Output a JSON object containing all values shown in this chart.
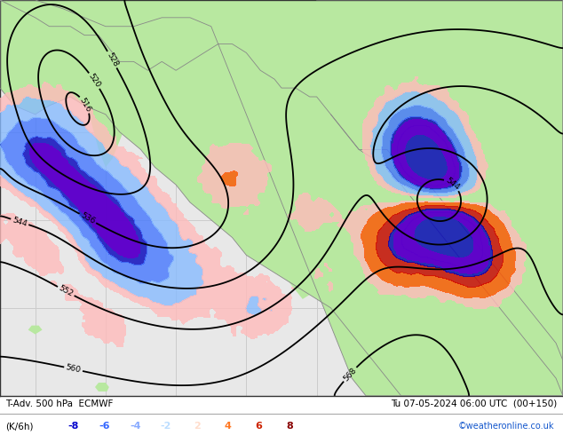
{
  "title_line1": "T-Adv. 500 hPa  ECMWF",
  "title_line2": "Tu 07-05-2024 06:00 UTC  (00+150)",
  "ylabel": "(K/6h)",
  "colorbar_labels": [
    "-8",
    "-6",
    "-4",
    "-2",
    "2",
    "4",
    "6",
    "8"
  ],
  "colorbar_colors_neg": [
    "#0000cc",
    "#3366ff",
    "#88aaff",
    "#bbddff"
  ],
  "colorbar_colors_pos": [
    "#ffddcc",
    "#ff7722",
    "#cc2200",
    "#880000"
  ],
  "credit": "©weatheronline.co.uk",
  "land_color": "#b8e8a0",
  "ocean_color": "#e8e8e8",
  "land_outline_color": "#888888",
  "contour_color": "#000000",
  "grid_color": "#cccccc",
  "fig_bg": "#ffffff",
  "fig_width": 6.34,
  "fig_height": 4.9,
  "dpi": 100,
  "lon_min": 175,
  "lon_max": 95,
  "lat_min": 20,
  "lat_max": 65
}
